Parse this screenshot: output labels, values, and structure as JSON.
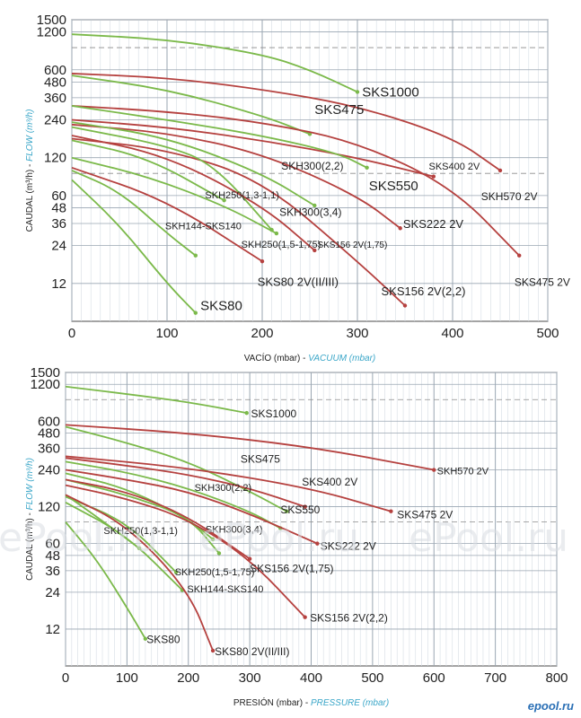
{
  "watermarks": [
    "ePool.ru",
    "ePool.ru",
    "ePool.ru"
  ],
  "brand": "epool.ru",
  "chart_data": [
    {
      "type": "line",
      "xlabel": "VACÍO (mbar) - ",
      "xlabel_en": "VACUUM (mbar)",
      "ylabel": "CAUDAL (m³/h) - ",
      "ylabel_en": "FLOW (m³/h)",
      "xlim": [
        0,
        500
      ],
      "x_ticks": [
        0,
        100,
        200,
        300,
        400,
        500
      ],
      "y_scale": "log",
      "ylim": [
        6,
        1500
      ],
      "y_ticks": [
        12,
        24,
        36,
        48,
        60,
        120,
        240,
        360,
        480,
        600,
        1200,
        1500
      ],
      "grid": true,
      "series": [
        {
          "name": "SKS1000",
          "color": "#7bb94a",
          "x": [
            0,
            100,
            200,
            250,
            300
          ],
          "y": [
            1150,
            1050,
            800,
            600,
            400
          ]
        },
        {
          "name": "SKH570 2V",
          "color": "#b5413f",
          "x": [
            0,
            100,
            200,
            300,
            400,
            450
          ],
          "y": [
            560,
            520,
            420,
            310,
            175,
            95
          ]
        },
        {
          "name": "SKS475",
          "color": "#7bb94a",
          "x": [
            0,
            100,
            200,
            250
          ],
          "y": [
            540,
            420,
            260,
            185
          ]
        },
        {
          "name": "SKS475 2V",
          "color": "#b5413f",
          "x": [
            0,
            100,
            200,
            300,
            400,
            470
          ],
          "y": [
            310,
            280,
            230,
            160,
            70,
            20
          ]
        },
        {
          "name": "SKS400 2V",
          "color": "#b5413f",
          "x": [
            0,
            100,
            200,
            300,
            380
          ],
          "y": [
            240,
            210,
            165,
            120,
            85
          ]
        },
        {
          "name": "SKS550",
          "color": "#7bb94a",
          "x": [
            0,
            100,
            200,
            280,
            310
          ],
          "y": [
            310,
            240,
            180,
            130,
            100
          ]
        },
        {
          "name": "SKS222 2V",
          "color": "#b5413f",
          "x": [
            0,
            100,
            200,
            300,
            345
          ],
          "y": [
            220,
            190,
            130,
            60,
            33
          ]
        },
        {
          "name": "SKH300(2,2)",
          "color": "#7bb94a",
          "x": [
            0,
            100,
            200,
            255
          ],
          "y": [
            230,
            175,
            90,
            50
          ]
        },
        {
          "name": "SKS156 2V(2,2)",
          "color": "#b5413f",
          "x": [
            0,
            100,
            200,
            300,
            350
          ],
          "y": [
            170,
            140,
            80,
            18,
            8
          ]
        },
        {
          "name": "SKH300(3,4)",
          "color": "#7bb94a",
          "x": [
            0,
            100,
            150,
            210
          ],
          "y": [
            210,
            150,
            105,
            32
          ]
        },
        {
          "name": "SKS156 2V(1,75)",
          "color": "#b5413f",
          "x": [
            0,
            100,
            200,
            255
          ],
          "y": [
            180,
            125,
            50,
            22
          ]
        },
        {
          "name": "SKH250(1,3-1,1)",
          "color": "#7bb94a",
          "x": [
            0,
            80,
            160
          ],
          "y": [
            165,
            120,
            55
          ]
        },
        {
          "name": "SKH250(1,5-1,75)",
          "color": "#7bb94a",
          "x": [
            0,
            80,
            160,
            215
          ],
          "y": [
            120,
            85,
            50,
            30
          ]
        },
        {
          "name": "SKS80 2V(II/III)",
          "color": "#b5413f",
          "x": [
            0,
            100,
            200
          ],
          "y": [
            100,
            55,
            18
          ]
        },
        {
          "name": "SKH144-SKS140",
          "color": "#7bb94a",
          "x": [
            0,
            50,
            100,
            130
          ],
          "y": [
            95,
            65,
            30,
            20
          ]
        },
        {
          "name": "SKS80",
          "color": "#7bb94a",
          "x": [
            0,
            50,
            100,
            130
          ],
          "y": [
            80,
            35,
            12,
            7
          ]
        }
      ],
      "labels": [
        {
          "text": "SKS1000",
          "at": [
            305,
            400
          ],
          "size": 15
        },
        {
          "text": "SKS475",
          "at": [
            255,
            290
          ],
          "size": 15
        },
        {
          "text": "SKS550",
          "at": [
            312,
            72
          ],
          "size": 15
        },
        {
          "text": "SKH570 2V",
          "at": [
            430,
            60
          ],
          "size": 12
        },
        {
          "text": "SKS400 2V",
          "at": [
            375,
            105
          ],
          "size": 11
        },
        {
          "text": "SKH300(2,2)",
          "at": [
            220,
            105
          ],
          "size": 12
        },
        {
          "text": "SKH250(1,3-1,1)",
          "at": [
            140,
            62
          ],
          "size": 11
        },
        {
          "text": "SKH300(3,4)",
          "at": [
            218,
            45
          ],
          "size": 12
        },
        {
          "text": "SKS222 2V",
          "at": [
            348,
            36
          ],
          "size": 13
        },
        {
          "text": "SKH144-SKS140",
          "at": [
            98,
            35
          ],
          "size": 11
        },
        {
          "text": "SKH250(1,5-1,75)",
          "at": [
            178,
            25
          ],
          "size": 11
        },
        {
          "text": "SKS156 2V(1,75)",
          "at": [
            258,
            25
          ],
          "size": 10
        },
        {
          "text": "SKS80 2V(II/III)",
          "at": [
            195,
            12.5
          ],
          "size": 13
        },
        {
          "text": "SKS156 2V(2,2)",
          "at": [
            325,
            10.5
          ],
          "size": 13
        },
        {
          "text": "SKS475 2V",
          "at": [
            465,
            12.5
          ],
          "size": 12
        },
        {
          "text": "SKS80",
          "at": [
            135,
            8
          ],
          "size": 15
        }
      ]
    },
    {
      "type": "line",
      "xlabel": "PRESIÓN (mbar) - ",
      "xlabel_en": "PRESSURE (mbar)",
      "ylabel": "CAUDAL (m³/h) - ",
      "ylabel_en": "FLOW (m³/h)",
      "xlim": [
        0,
        800
      ],
      "x_ticks": [
        0,
        100,
        200,
        300,
        400,
        500,
        600,
        700,
        800
      ],
      "y_scale": "log",
      "ylim": [
        6,
        1500
      ],
      "y_ticks": [
        12,
        24,
        36,
        48,
        60,
        120,
        240,
        360,
        480,
        600,
        1200,
        1500
      ],
      "grid": true,
      "series": [
        {
          "name": "SKS1000",
          "color": "#7bb94a",
          "x": [
            0,
            100,
            200,
            295
          ],
          "y": [
            1150,
            1000,
            860,
            700
          ]
        },
        {
          "name": "SKH570 2V",
          "color": "#b5413f",
          "x": [
            0,
            200,
            400,
            600
          ],
          "y": [
            560,
            480,
            370,
            240
          ]
        },
        {
          "name": "SKS475",
          "color": "#7bb94a",
          "x": [
            0,
            100,
            200,
            300,
            360
          ],
          "y": [
            540,
            400,
            280,
            160,
            110
          ]
        },
        {
          "name": "SKS475 2V",
          "color": "#b5413f",
          "x": [
            0,
            200,
            400,
            530
          ],
          "y": [
            310,
            250,
            170,
            110
          ]
        },
        {
          "name": "SKS400 2V",
          "color": "#b5413f",
          "x": [
            0,
            100,
            200,
            300,
            390
          ],
          "y": [
            300,
            260,
            220,
            170,
            120
          ]
        },
        {
          "name": "SKS550",
          "color": "#7bb94a",
          "x": [
            0,
            100,
            200,
            300,
            350
          ],
          "y": [
            280,
            230,
            170,
            110,
            80
          ]
        },
        {
          "name": "SKS222 2V",
          "color": "#b5413f",
          "x": [
            0,
            100,
            200,
            300,
            410
          ],
          "y": [
            240,
            200,
            160,
            105,
            60
          ]
        },
        {
          "name": "SKH300(2,2)",
          "color": "#7bb94a",
          "x": [
            0,
            100,
            200,
            240
          ],
          "y": [
            225,
            170,
            95,
            65
          ]
        },
        {
          "name": "SKH300(3,4)",
          "color": "#7bb94a",
          "x": [
            0,
            100,
            200,
            250
          ],
          "y": [
            200,
            150,
            100,
            50
          ]
        },
        {
          "name": "SKS156 2V(1,75)",
          "color": "#b5413f",
          "x": [
            0,
            100,
            200,
            300
          ],
          "y": [
            200,
            160,
            100,
            45
          ]
        },
        {
          "name": "SKS156 2V(2,2)",
          "color": "#b5413f",
          "x": [
            0,
            100,
            200,
            300,
            390
          ],
          "y": [
            180,
            140,
            95,
            45,
            15
          ]
        },
        {
          "name": "SKH250(1,3-1,1)",
          "color": "#7bb94a",
          "x": [
            0,
            50,
            120
          ],
          "y": [
            150,
            100,
            55
          ]
        },
        {
          "name": "SKH250(1,5-1,75)",
          "color": "#7bb94a",
          "x": [
            0,
            100,
            180
          ],
          "y": [
            145,
            90,
            35
          ]
        },
        {
          "name": "SKH144-SKS140",
          "color": "#7bb94a",
          "x": [
            0,
            100,
            190
          ],
          "y": [
            130,
            70,
            25
          ]
        },
        {
          "name": "SKS80 2V(II/III)",
          "color": "#b5413f",
          "x": [
            0,
            100,
            200,
            240
          ],
          "y": [
            150,
            85,
            25,
            8
          ]
        },
        {
          "name": "SKS80",
          "color": "#7bb94a",
          "x": [
            0,
            50,
            100,
            130
          ],
          "y": [
            90,
            45,
            18,
            10
          ]
        }
      ],
      "labels": [
        {
          "text": "SKS1000",
          "at": [
            302,
            700
          ],
          "size": 12
        },
        {
          "text": "SKH570 2V",
          "at": [
            605,
            240
          ],
          "size": 11
        },
        {
          "text": "SKS475",
          "at": [
            285,
            300
          ],
          "size": 12
        },
        {
          "text": "SKS400 2V",
          "at": [
            385,
            195
          ],
          "size": 12
        },
        {
          "text": "SKS475 2V",
          "at": [
            540,
            105
          ],
          "size": 12
        },
        {
          "text": "SKH300(2,2)",
          "at": [
            210,
            175
          ],
          "size": 11
        },
        {
          "text": "SKS550",
          "at": [
            350,
            115
          ],
          "size": 12
        },
        {
          "text": "SKH250(1,3-1,1)",
          "at": [
            62,
            78
          ],
          "size": 11
        },
        {
          "text": "SKH300(3,4)",
          "at": [
            228,
            80
          ],
          "size": 11
        },
        {
          "text": "SKS222 2V",
          "at": [
            415,
            58
          ],
          "size": 12
        },
        {
          "text": "SKH250(1,5-1,75)",
          "at": [
            178,
            36
          ],
          "size": 11
        },
        {
          "text": "SKS156 2V(1,75)",
          "at": [
            300,
            38
          ],
          "size": 12
        },
        {
          "text": "SKH144-SKS140",
          "at": [
            198,
            26
          ],
          "size": 11
        },
        {
          "text": "SKS156 2V(2,2)",
          "at": [
            398,
            15
          ],
          "size": 12
        },
        {
          "text": "SKS80",
          "at": [
            132,
            10
          ],
          "size": 12
        },
        {
          "text": "SKS80 2V(II/III)",
          "at": [
            243,
            8
          ],
          "size": 12
        }
      ]
    }
  ]
}
